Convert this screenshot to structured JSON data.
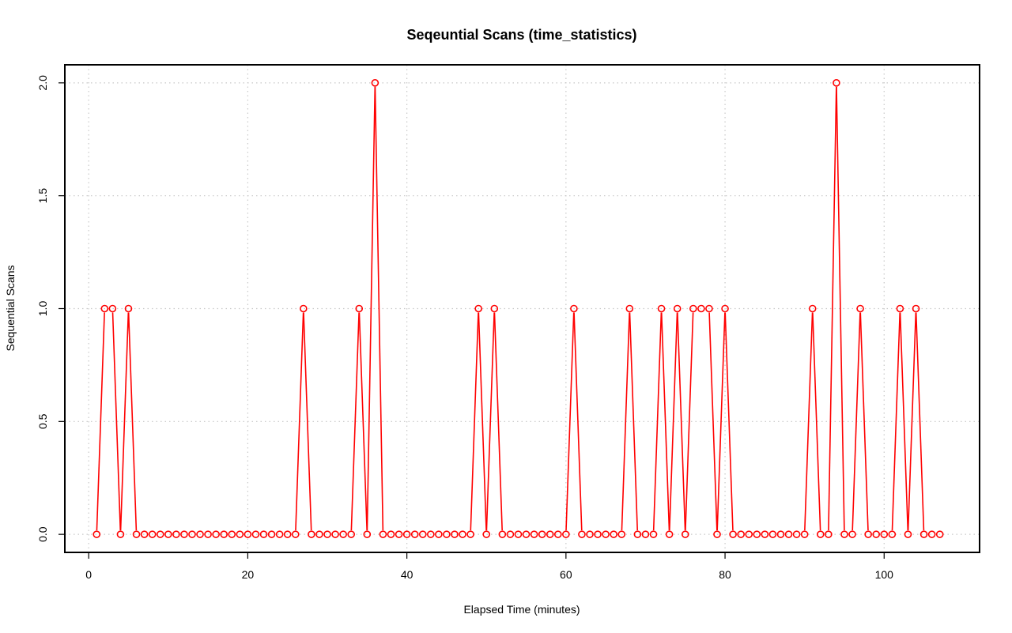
{
  "chart_data": {
    "type": "line",
    "title": "Seqeuntial Scans (time_statistics)",
    "xlabel": "Elapsed Time (minutes)",
    "ylabel": "Sequential Scans",
    "xlim": [
      -3,
      112
    ],
    "ylim": [
      -0.08,
      2.08
    ],
    "xticks": [
      0,
      20,
      40,
      60,
      80,
      100
    ],
    "xtick_labels": [
      "0",
      "20",
      "40",
      "60",
      "80",
      "100"
    ],
    "yticks": [
      0,
      0.5,
      1,
      1.5,
      2
    ],
    "ytick_labels": [
      "0.0",
      "0.5",
      "1.0",
      "1.5",
      "2.0"
    ],
    "grid": true,
    "series": [
      {
        "color": "#ff0000",
        "marker": "open-circle",
        "x": [
          1,
          2,
          3,
          4,
          5,
          6,
          7,
          8,
          9,
          10,
          11,
          12,
          13,
          14,
          15,
          16,
          17,
          18,
          19,
          20,
          21,
          22,
          23,
          24,
          25,
          26,
          27,
          28,
          29,
          30,
          31,
          32,
          33,
          34,
          35,
          36,
          37,
          38,
          39,
          40,
          41,
          42,
          43,
          44,
          45,
          46,
          47,
          48,
          49,
          50,
          51,
          52,
          53,
          54,
          55,
          56,
          57,
          58,
          59,
          60,
          61,
          62,
          63,
          64,
          65,
          66,
          67,
          68,
          69,
          70,
          71,
          72,
          73,
          74,
          75,
          76,
          77,
          78,
          79,
          80,
          81,
          82,
          83,
          84,
          85,
          86,
          87,
          88,
          89,
          90,
          91,
          92,
          93,
          94,
          95,
          96,
          97,
          98,
          99,
          100,
          101,
          102,
          103,
          104,
          105,
          106,
          107
        ],
        "values": [
          0,
          1,
          1,
          0,
          1,
          0,
          0,
          0,
          0,
          0,
          0,
          0,
          0,
          0,
          0,
          0,
          0,
          0,
          0,
          0,
          0,
          0,
          0,
          0,
          0,
          0,
          1,
          0,
          0,
          0,
          0,
          0,
          0,
          1,
          0,
          2,
          0,
          0,
          0,
          0,
          0,
          0,
          0,
          0,
          0,
          0,
          0,
          0,
          1,
          0,
          1,
          0,
          0,
          0,
          0,
          0,
          0,
          0,
          0,
          0,
          1,
          0,
          0,
          0,
          0,
          0,
          0,
          1,
          0,
          0,
          0,
          1,
          0,
          1,
          0,
          1,
          1,
          1,
          0,
          1,
          0,
          0,
          0,
          0,
          0,
          0,
          0,
          0,
          0,
          0,
          1,
          0,
          0,
          2,
          0,
          0,
          1,
          0,
          0,
          0,
          0,
          1,
          0,
          1,
          0,
          0,
          0
        ]
      }
    ]
  }
}
